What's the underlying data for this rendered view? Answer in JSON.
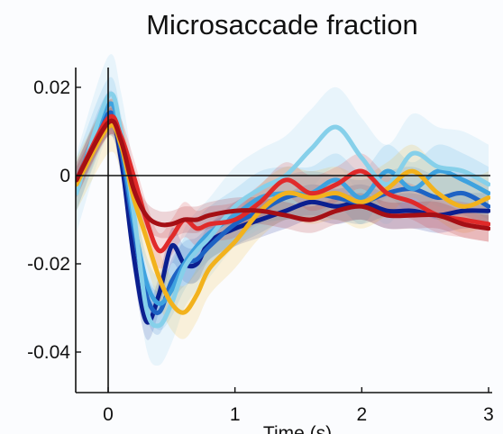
{
  "chart_data": {
    "type": "line",
    "title": "Microsaccade fraction",
    "xlabel": "Time (s)",
    "ylabel": "",
    "xlim": [
      -0.25,
      3.0
    ],
    "ylim": [
      -0.05,
      0.025
    ],
    "xticks": [
      0,
      1,
      2,
      3
    ],
    "xtick_labels": [
      "0",
      "1",
      "2",
      "3"
    ],
    "yticks": [
      0.02,
      0,
      -0.02,
      -0.04
    ],
    "ytick_labels": [
      "0.02",
      "0",
      "-0.02",
      "-0.04"
    ],
    "grid": false,
    "legend": "none",
    "reference_lines": {
      "horizontal_y": 0,
      "vertical_x": 0
    },
    "series": [
      {
        "color": "#0b1f8f",
        "x": [
          -0.25,
          0,
          0.1,
          0.2,
          0.3,
          0.4,
          0.5,
          0.6,
          0.7,
          0.8,
          1.0,
          1.2,
          1.4,
          1.6,
          1.8,
          2.0,
          2.2,
          2.4,
          2.6,
          2.8,
          3.0
        ],
        "y": [
          -0.001,
          0.013,
          0.004,
          -0.018,
          -0.033,
          -0.027,
          -0.016,
          -0.02,
          -0.02,
          -0.015,
          -0.012,
          -0.01,
          -0.008,
          -0.006,
          -0.007,
          -0.006,
          -0.008,
          -0.008,
          -0.009,
          -0.008,
          -0.008
        ],
        "band": 0.004
      },
      {
        "color": "#1e63c4",
        "x": [
          -0.25,
          0,
          0.1,
          0.2,
          0.3,
          0.4,
          0.5,
          0.6,
          0.7,
          0.8,
          1.0,
          1.2,
          1.4,
          1.6,
          1.8,
          2.0,
          2.2,
          2.4,
          2.6,
          2.8,
          3.0
        ],
        "y": [
          -0.003,
          0.014,
          0.006,
          -0.012,
          -0.027,
          -0.031,
          -0.024,
          -0.02,
          -0.019,
          -0.016,
          -0.011,
          -0.008,
          -0.005,
          -0.004,
          -0.005,
          -0.006,
          -0.004,
          -0.003,
          -0.005,
          -0.004,
          -0.007
        ],
        "band": 0.005
      },
      {
        "color": "#3ea2df",
        "x": [
          -0.25,
          0,
          0.1,
          0.2,
          0.3,
          0.4,
          0.5,
          0.6,
          0.7,
          0.8,
          1.0,
          1.2,
          1.4,
          1.6,
          1.8,
          2.0,
          2.2,
          2.4,
          2.6,
          2.8,
          3.0
        ],
        "y": [
          -0.002,
          0.016,
          0.008,
          -0.01,
          -0.024,
          -0.029,
          -0.026,
          -0.02,
          -0.016,
          -0.013,
          -0.009,
          -0.005,
          -0.004,
          -0.004,
          -0.001,
          -0.005,
          0.001,
          -0.003,
          0.001,
          -0.001,
          -0.004
        ],
        "band": 0.006
      },
      {
        "color": "#86d0ea",
        "x": [
          -0.25,
          0,
          0.1,
          0.2,
          0.3,
          0.4,
          0.5,
          0.6,
          0.7,
          0.8,
          1.0,
          1.2,
          1.4,
          1.6,
          1.8,
          2.0,
          2.2,
          2.4,
          2.6,
          2.8,
          3.0
        ],
        "y": [
          -0.004,
          0.018,
          0.01,
          -0.008,
          -0.03,
          -0.034,
          -0.029,
          -0.021,
          -0.017,
          -0.014,
          -0.007,
          -0.003,
          0.0,
          0.006,
          0.011,
          0.004,
          -0.002,
          0.005,
          0.002,
          0.001,
          -0.002
        ],
        "band": 0.009
      },
      {
        "color": "#f2b21d",
        "x": [
          -0.25,
          0,
          0.1,
          0.2,
          0.3,
          0.4,
          0.5,
          0.6,
          0.7,
          0.8,
          1.0,
          1.2,
          1.4,
          1.6,
          1.8,
          2.0,
          2.2,
          2.4,
          2.6,
          2.8,
          3.0
        ],
        "y": [
          -0.002,
          0.011,
          0.007,
          -0.005,
          -0.014,
          -0.023,
          -0.029,
          -0.031,
          -0.027,
          -0.021,
          -0.015,
          -0.008,
          -0.004,
          -0.005,
          -0.004,
          -0.006,
          -0.003,
          0.001,
          -0.004,
          -0.007,
          -0.005
        ],
        "band": 0.006
      },
      {
        "color": "#e02a2a",
        "x": [
          -0.25,
          0,
          0.1,
          0.2,
          0.3,
          0.4,
          0.5,
          0.6,
          0.7,
          0.8,
          1.0,
          1.2,
          1.4,
          1.6,
          1.8,
          2.0,
          2.2,
          2.4,
          2.6,
          2.8,
          3.0
        ],
        "y": [
          -0.001,
          0.013,
          0.009,
          0.0,
          -0.01,
          -0.017,
          -0.014,
          -0.01,
          -0.012,
          -0.011,
          -0.01,
          -0.006,
          -0.001,
          -0.004,
          -0.002,
          0.001,
          -0.004,
          -0.006,
          -0.009,
          -0.01,
          -0.011
        ],
        "band": 0.004
      },
      {
        "color": "#a50f15",
        "x": [
          -0.25,
          0,
          0.1,
          0.2,
          0.3,
          0.4,
          0.5,
          0.6,
          0.7,
          0.8,
          1.0,
          1.2,
          1.4,
          1.6,
          1.8,
          2.0,
          2.2,
          2.4,
          2.6,
          2.8,
          3.0
        ],
        "y": [
          -0.001,
          0.012,
          0.008,
          -0.003,
          -0.009,
          -0.011,
          -0.011,
          -0.01,
          -0.01,
          -0.009,
          -0.008,
          -0.008,
          -0.009,
          -0.01,
          -0.008,
          -0.007,
          -0.009,
          -0.009,
          -0.009,
          -0.011,
          -0.012
        ],
        "band": 0.003
      }
    ]
  }
}
